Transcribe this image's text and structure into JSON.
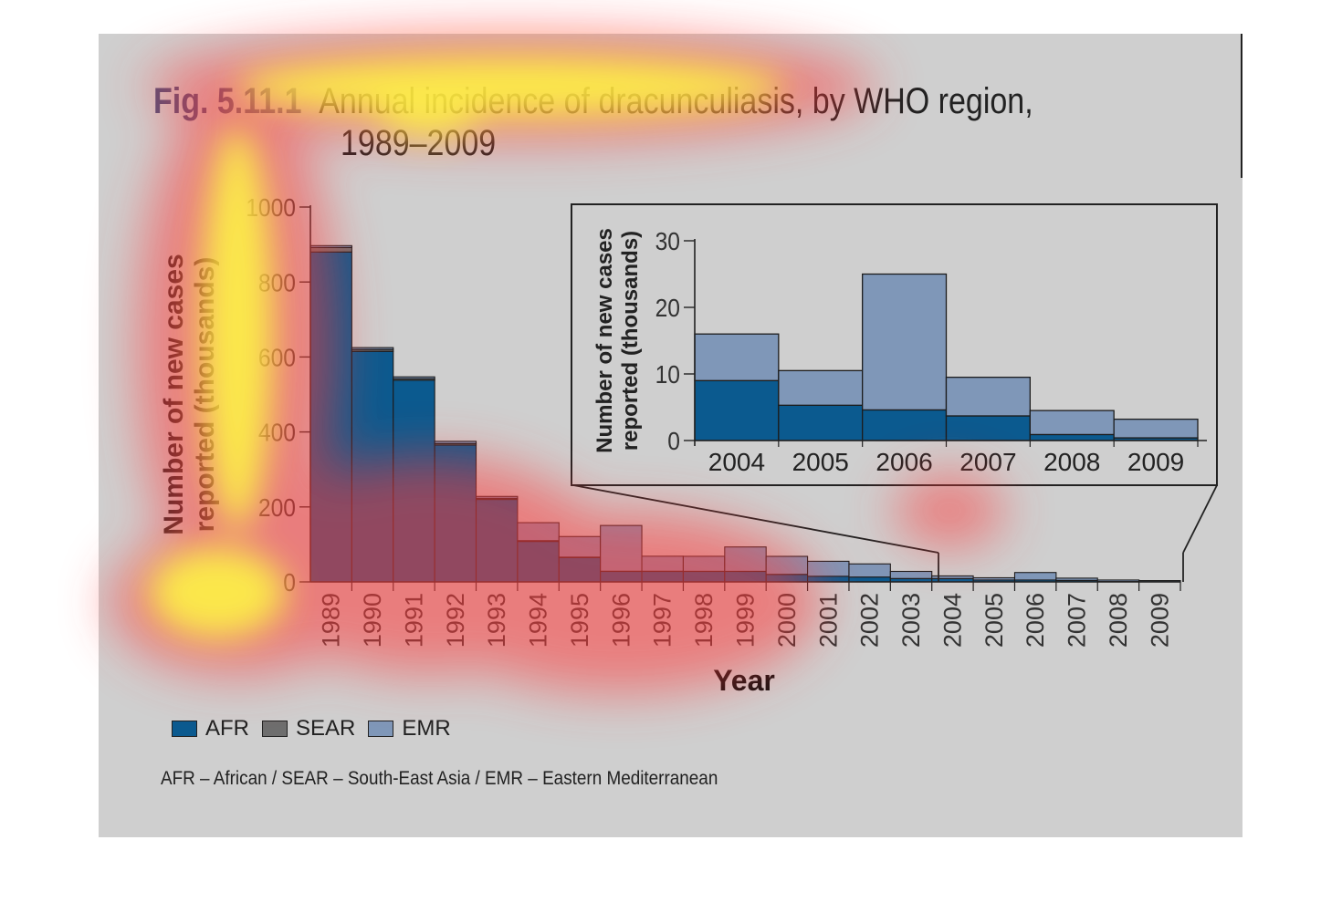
{
  "figure": {
    "label": "Fig. 5.11.1",
    "title": "Annual incidence of dracunculiasis, by WHO region,",
    "title_line2": "1989–2009",
    "footnote": "AFR – African / SEAR – South-East Asia / EMR – Eastern Mediterranean"
  },
  "legend": [
    {
      "name": "AFR",
      "color": "#0b5a8f"
    },
    {
      "name": "SEAR",
      "color": "#6e6e6e"
    },
    {
      "name": "EMR",
      "color": "#7f97b8"
    }
  ],
  "colors": {
    "AFR": "#0b5a8f",
    "SEAR": "#6e6e6e",
    "EMR": "#7f97b8",
    "heat_hot": "#ffff40",
    "heat_warm": "#ff3a3a"
  },
  "chart_data": [
    {
      "type": "bar",
      "stacked": true,
      "xlabel": "Year",
      "ylabel": "Number of new cases reported (thousands)",
      "ylim": [
        0,
        1000
      ],
      "yticks": [
        0,
        200,
        400,
        600,
        800,
        1000
      ],
      "categories": [
        "1989",
        "1990",
        "1991",
        "1992",
        "1993",
        "1994",
        "1995",
        "1996",
        "1997",
        "1998",
        "1999",
        "2000",
        "2001",
        "2002",
        "2003",
        "2004",
        "2005",
        "2006",
        "2007",
        "2008",
        "2009"
      ],
      "series": [
        {
          "name": "AFR",
          "values": [
            880,
            615,
            538,
            365,
            220,
            108,
            65,
            28,
            28,
            28,
            28,
            20,
            15,
            13,
            9,
            9,
            5,
            5,
            4,
            1,
            0.5
          ]
        },
        {
          "name": "SEAR",
          "values": [
            12,
            5,
            4,
            4,
            3,
            2,
            1,
            0.5,
            0.5,
            0.3,
            0.2,
            0.1,
            0,
            0,
            0,
            0,
            0,
            0,
            0,
            0,
            0
          ]
        },
        {
          "name": "EMR",
          "values": [
            5,
            5,
            5,
            6,
            5,
            48,
            55,
            122,
            40,
            40,
            65,
            48,
            40,
            35,
            19,
            7,
            6,
            20,
            6,
            4,
            3
          ]
        }
      ]
    },
    {
      "type": "bar",
      "stacked": true,
      "inset": true,
      "ylabel": "Number of new cases reported (thousands)",
      "ylim": [
        0,
        30
      ],
      "yticks": [
        0,
        10,
        20,
        30
      ],
      "categories": [
        "2004",
        "2005",
        "2006",
        "2007",
        "2008",
        "2009"
      ],
      "series": [
        {
          "name": "AFR",
          "values": [
            9,
            5.3,
            4.6,
            3.7,
            0.9,
            0.4
          ]
        },
        {
          "name": "EMR",
          "values": [
            7,
            5.2,
            20.4,
            5.8,
            3.6,
            2.8
          ]
        }
      ]
    }
  ]
}
